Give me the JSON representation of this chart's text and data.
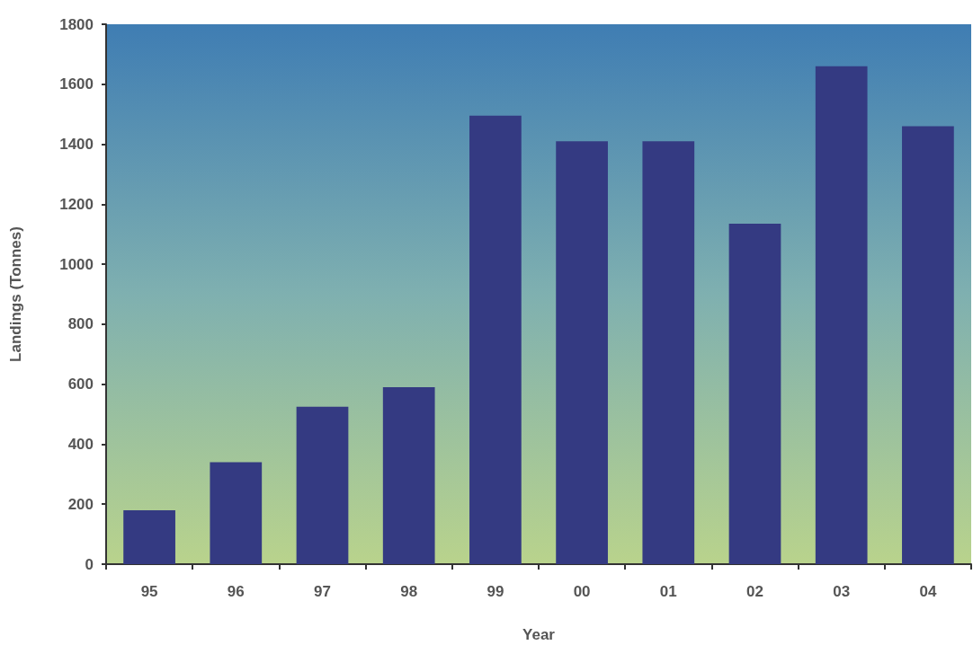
{
  "chart_data": {
    "type": "bar",
    "xlabel": "Year",
    "ylabel": "Landings (Tonnes)",
    "categories": [
      "95",
      "96",
      "97",
      "98",
      "99",
      "00",
      "01",
      "02",
      "03",
      "04"
    ],
    "values": [
      180,
      340,
      525,
      590,
      1495,
      1410,
      1410,
      1135,
      1660,
      1460
    ],
    "color": "#343a82",
    "ylim": [
      0,
      1800
    ],
    "yticks": [
      0,
      200,
      400,
      600,
      800,
      1000,
      1200,
      1400,
      1600,
      1800
    ],
    "grid": false
  }
}
